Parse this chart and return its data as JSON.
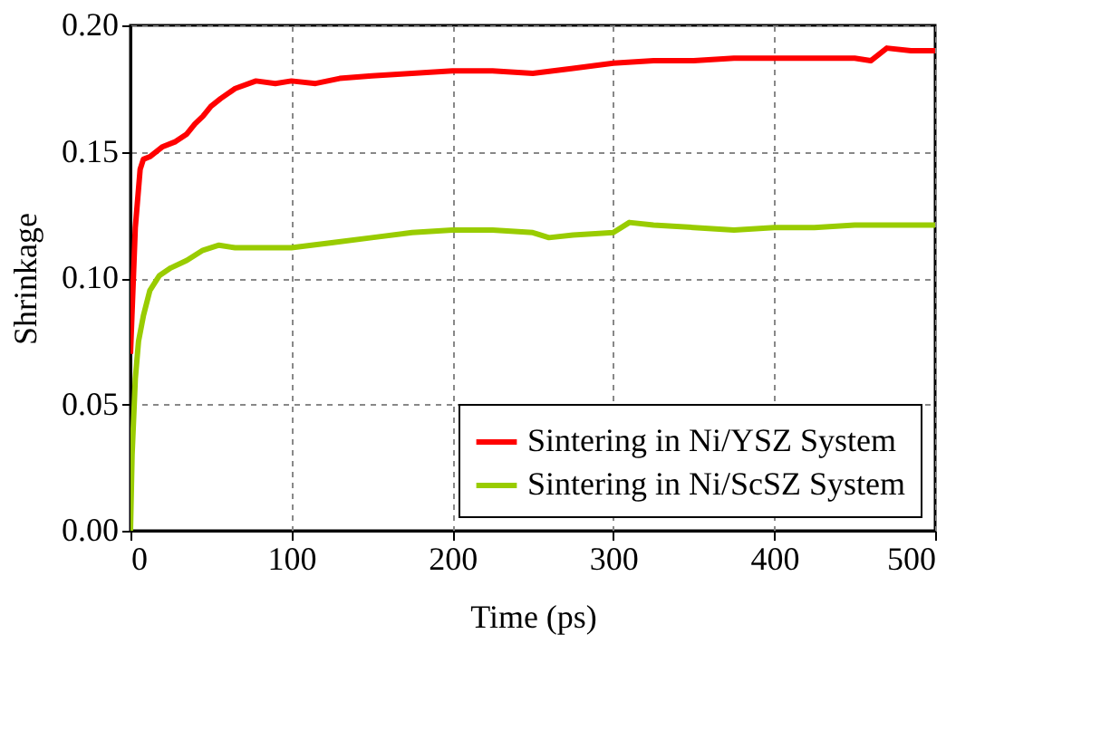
{
  "chart_data": {
    "type": "line",
    "xlabel": "Time (ps)",
    "ylabel": "Shrinkage",
    "xlim": [
      0,
      500
    ],
    "ylim": [
      0,
      0.2
    ],
    "xticks": [
      0,
      100,
      200,
      300,
      400,
      500
    ],
    "yticks": [
      {
        "value": 0,
        "label": "0.00"
      },
      {
        "value": 0.05,
        "label": "0.05"
      },
      {
        "value": 0.1,
        "label": "0.10"
      },
      {
        "value": 0.15,
        "label": "0.15"
      },
      {
        "value": 0.2,
        "label": "0.20"
      }
    ],
    "grid": true,
    "legend": "bottom right",
    "line_style": "solid",
    "marker": "none",
    "series": [
      {
        "name": "Sintering in Ni/YSZ System",
        "color": "#ff0000",
        "x": [
          0,
          3,
          6,
          8,
          12,
          20,
          28,
          35,
          40,
          45,
          50,
          56,
          65,
          78,
          90,
          100,
          115,
          130,
          150,
          175,
          200,
          225,
          250,
          275,
          300,
          325,
          350,
          375,
          400,
          425,
          450,
          460,
          470,
          485,
          500
        ],
        "values": [
          0.07,
          0.12,
          0.143,
          0.147,
          0.148,
          0.152,
          0.154,
          0.157,
          0.161,
          0.164,
          0.168,
          0.171,
          0.175,
          0.178,
          0.177,
          0.178,
          0.177,
          0.179,
          0.18,
          0.181,
          0.182,
          0.182,
          0.181,
          0.183,
          0.185,
          0.186,
          0.186,
          0.187,
          0.187,
          0.187,
          0.187,
          0.186,
          0.191,
          0.19,
          0.19
        ]
      },
      {
        "name": "Sintering in Ni/ScSZ System",
        "color": "#99cc00",
        "x": [
          0,
          1,
          3,
          5,
          8,
          12,
          18,
          25,
          35,
          45,
          55,
          65,
          80,
          100,
          125,
          150,
          175,
          200,
          225,
          250,
          260,
          275,
          300,
          310,
          325,
          350,
          375,
          400,
          425,
          450,
          475,
          500
        ],
        "values": [
          0,
          0.03,
          0.06,
          0.075,
          0.085,
          0.095,
          0.101,
          0.104,
          0.107,
          0.111,
          0.113,
          0.112,
          0.112,
          0.112,
          0.114,
          0.116,
          0.118,
          0.119,
          0.119,
          0.118,
          0.116,
          0.117,
          0.118,
          0.122,
          0.121,
          0.12,
          0.119,
          0.12,
          0.12,
          0.121,
          0.121,
          0.121
        ]
      }
    ]
  }
}
